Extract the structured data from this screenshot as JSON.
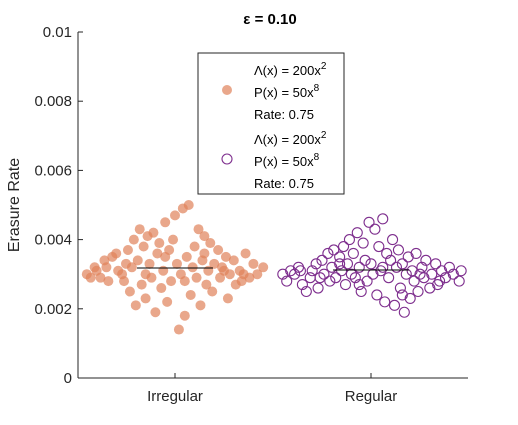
{
  "chart_data": {
    "type": "scatter",
    "title": "ε = 0.10",
    "xlabel": "",
    "ylabel": "Erasure Rate",
    "categories": [
      "Irregular",
      "Regular"
    ],
    "ylim": [
      0,
      0.01
    ],
    "yticks": [
      "0",
      "0.002",
      "0.004",
      "0.006",
      "0.008",
      "0.01"
    ],
    "grid": false,
    "legend_position": "upper-center",
    "series": [
      {
        "name": "Irregular",
        "category": "Irregular",
        "marker": "filled-circle",
        "color": "#e0825a",
        "mean": 0.00318,
        "legend_lines": [
          "Λ(x) = 200x2",
          "P(x) = 50x8",
          "Rate: 0.75"
        ],
        "points": [
          [
            -0.45,
            0.003
          ],
          [
            -0.43,
            0.0029
          ],
          [
            -0.41,
            0.0032
          ],
          [
            -0.4,
            0.0031
          ],
          [
            -0.38,
            0.0029
          ],
          [
            -0.36,
            0.0034
          ],
          [
            -0.34,
            0.0028
          ],
          [
            -0.32,
            0.0035
          ],
          [
            -0.3,
            0.0036
          ],
          [
            -0.29,
            0.0031
          ],
          [
            -0.27,
            0.003
          ],
          [
            -0.26,
            0.0028
          ],
          [
            -0.24,
            0.0037
          ],
          [
            -0.23,
            0.0025
          ],
          [
            -0.22,
            0.0032
          ],
          [
            -0.21,
            0.004
          ],
          [
            -0.2,
            0.0021
          ],
          [
            -0.19,
            0.0034
          ],
          [
            -0.18,
            0.0043
          ],
          [
            -0.17,
            0.0027
          ],
          [
            -0.16,
            0.0038
          ],
          [
            -0.15,
            0.0023
          ],
          [
            -0.14,
            0.0041
          ],
          [
            -0.13,
            0.0033
          ],
          [
            -0.12,
            0.0029
          ],
          [
            -0.11,
            0.0042
          ],
          [
            -0.1,
            0.0019
          ],
          [
            -0.09,
            0.0036
          ],
          [
            -0.08,
            0.0039
          ],
          [
            -0.07,
            0.0026
          ],
          [
            -0.06,
            0.0031
          ],
          [
            -0.05,
            0.0045
          ],
          [
            -0.04,
            0.0022
          ],
          [
            -0.03,
            0.0037
          ],
          [
            -0.02,
            0.0028
          ],
          [
            -0.01,
            0.004
          ],
          [
            0.0,
            0.0047
          ],
          [
            0.01,
            0.0033
          ],
          [
            0.02,
            0.0014
          ],
          [
            0.03,
            0.003
          ],
          [
            0.04,
            0.0049
          ],
          [
            0.05,
            0.0018
          ],
          [
            0.06,
            0.0035
          ],
          [
            0.07,
            0.005
          ],
          [
            0.08,
            0.0024
          ],
          [
            0.09,
            0.0032
          ],
          [
            0.1,
            0.0038
          ],
          [
            0.11,
            0.0029
          ],
          [
            0.12,
            0.0043
          ],
          [
            0.13,
            0.0021
          ],
          [
            0.14,
            0.0034
          ],
          [
            0.15,
            0.0036
          ],
          [
            0.16,
            0.0027
          ],
          [
            0.17,
            0.0031
          ],
          [
            0.18,
            0.0039
          ],
          [
            0.19,
            0.0025
          ],
          [
            0.2,
            0.0033
          ],
          [
            0.22,
            0.0037
          ],
          [
            0.23,
            0.0029
          ],
          [
            0.24,
            0.0032
          ],
          [
            0.26,
            0.0035
          ],
          [
            0.27,
            0.0023
          ],
          [
            0.28,
            0.003
          ],
          [
            0.3,
            0.0034
          ],
          [
            0.31,
            0.0027
          ],
          [
            0.33,
            0.0031
          ],
          [
            0.34,
            0.0028
          ],
          [
            0.36,
            0.0036
          ],
          [
            0.38,
            0.0029
          ],
          [
            0.4,
            0.0033
          ],
          [
            0.42,
            0.003
          ],
          [
            0.45,
            0.0032
          ],
          [
            -0.35,
            0.0032
          ],
          [
            -0.25,
            0.0033
          ],
          [
            0.25,
            0.0031
          ],
          [
            0.35,
            0.003
          ],
          [
            -0.05,
            0.0035
          ],
          [
            0.05,
            0.0028
          ],
          [
            0.15,
            0.0041
          ],
          [
            -0.15,
            0.003
          ]
        ]
      },
      {
        "name": "Regular",
        "category": "Regular",
        "marker": "open-circle",
        "color": "#7e2f8e",
        "mean": 0.00312,
        "legend_lines": [
          "Λ(x) = 200x2",
          "P(x) = 50x8",
          "Rate: 0.75"
        ],
        "points": [
          [
            -0.45,
            0.003
          ],
          [
            -0.43,
            0.0028
          ],
          [
            -0.41,
            0.0031
          ],
          [
            -0.39,
            0.003
          ],
          [
            -0.37,
            0.0032
          ],
          [
            -0.35,
            0.0027
          ],
          [
            -0.33,
            0.0025
          ],
          [
            -0.31,
            0.0029
          ],
          [
            -0.3,
            0.0031
          ],
          [
            -0.28,
            0.0033
          ],
          [
            -0.27,
            0.0026
          ],
          [
            -0.25,
            0.0034
          ],
          [
            -0.24,
            0.003
          ],
          [
            -0.22,
            0.0036
          ],
          [
            -0.21,
            0.0028
          ],
          [
            -0.2,
            0.0032
          ],
          [
            -0.19,
            0.0037
          ],
          [
            -0.18,
            0.0029
          ],
          [
            -0.16,
            0.0035
          ],
          [
            -0.15,
            0.0031
          ],
          [
            -0.14,
            0.0038
          ],
          [
            -0.13,
            0.0027
          ],
          [
            -0.12,
            0.0033
          ],
          [
            -0.11,
            0.004
          ],
          [
            -0.1,
            0.003
          ],
          [
            -0.09,
            0.0036
          ],
          [
            -0.08,
            0.0029
          ],
          [
            -0.07,
            0.0042
          ],
          [
            -0.06,
            0.0032
          ],
          [
            -0.05,
            0.0025
          ],
          [
            -0.04,
            0.0039
          ],
          [
            -0.03,
            0.0034
          ],
          [
            -0.02,
            0.0028
          ],
          [
            -0.01,
            0.0045
          ],
          [
            0.0,
            0.0033
          ],
          [
            0.01,
            0.003
          ],
          [
            0.02,
            0.0043
          ],
          [
            0.03,
            0.0024
          ],
          [
            0.04,
            0.0038
          ],
          [
            0.05,
            0.0031
          ],
          [
            0.06,
            0.0046
          ],
          [
            0.07,
            0.0022
          ],
          [
            0.08,
            0.0036
          ],
          [
            0.09,
            0.0029
          ],
          [
            0.1,
            0.0034
          ],
          [
            0.11,
            0.004
          ],
          [
            0.12,
            0.0021
          ],
          [
            0.13,
            0.0032
          ],
          [
            0.14,
            0.0037
          ],
          [
            0.15,
            0.0026
          ],
          [
            0.16,
            0.0033
          ],
          [
            0.17,
            0.0019
          ],
          [
            0.18,
            0.003
          ],
          [
            0.19,
            0.0035
          ],
          [
            0.2,
            0.0023
          ],
          [
            0.21,
            0.0031
          ],
          [
            0.22,
            0.0028
          ],
          [
            0.23,
            0.0036
          ],
          [
            0.24,
            0.0025
          ],
          [
            0.26,
            0.0032
          ],
          [
            0.27,
            0.0029
          ],
          [
            0.28,
            0.0034
          ],
          [
            0.3,
            0.0026
          ],
          [
            0.31,
            0.003
          ],
          [
            0.33,
            0.0033
          ],
          [
            0.34,
            0.0027
          ],
          [
            0.36,
            0.0031
          ],
          [
            0.38,
            0.0029
          ],
          [
            0.4,
            0.0032
          ],
          [
            0.42,
            0.003
          ],
          [
            0.45,
            0.0028
          ],
          [
            -0.36,
            0.0031
          ],
          [
            -0.26,
            0.0029
          ],
          [
            0.25,
            0.003
          ],
          [
            0.35,
            0.0028
          ],
          [
            -0.06,
            0.0027
          ],
          [
            0.06,
            0.0032
          ],
          [
            0.16,
            0.0024
          ],
          [
            -0.16,
            0.0033
          ],
          [
            0.46,
            0.0031
          ]
        ]
      }
    ]
  }
}
